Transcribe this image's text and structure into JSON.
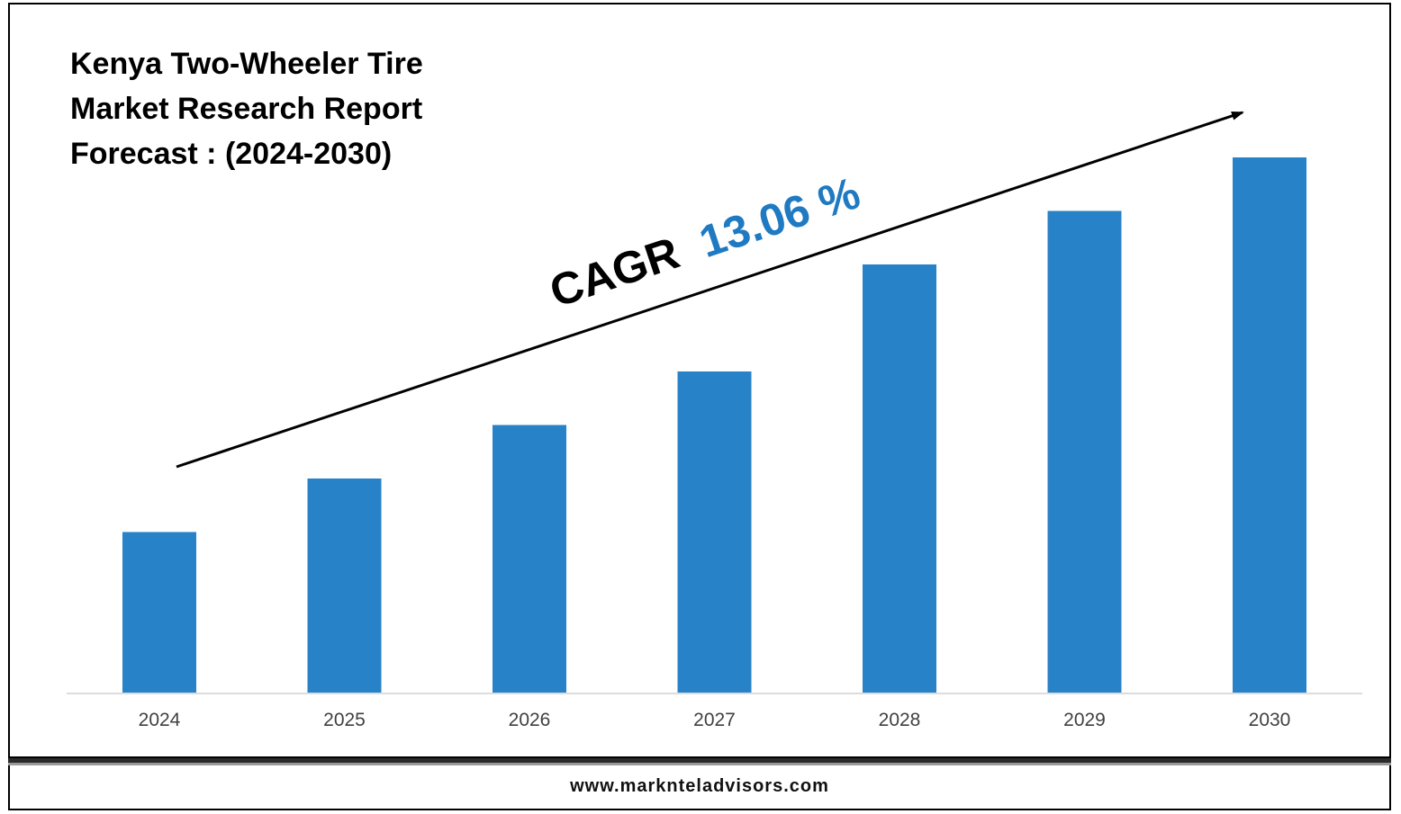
{
  "title_lines": [
    "Kenya Two-Wheeler Tire",
    "Market Research Report",
    "Forecast : (2024-2030)"
  ],
  "cagr": {
    "label": "CAGR",
    "value": "13.06 %"
  },
  "footer": {
    "website": "www.marknteladvisors.com"
  },
  "colors": {
    "bar": "#2882c8",
    "cagr_value": "#1f7ac2",
    "axis": "#d0d0d0"
  },
  "chart_data": {
    "type": "bar",
    "categories": [
      "2024",
      "2025",
      "2026",
      "2027",
      "2028",
      "2029",
      "2030"
    ],
    "values": [
      3,
      4,
      5,
      6,
      8,
      9,
      10
    ],
    "ylim": [
      0,
      10
    ],
    "title": "Kenya Two-Wheeler Tire Market Research Report Forecast : (2024-2030)",
    "xlabel": "",
    "ylabel": "",
    "grid": false,
    "annotation": "CAGR 13.06 %"
  }
}
